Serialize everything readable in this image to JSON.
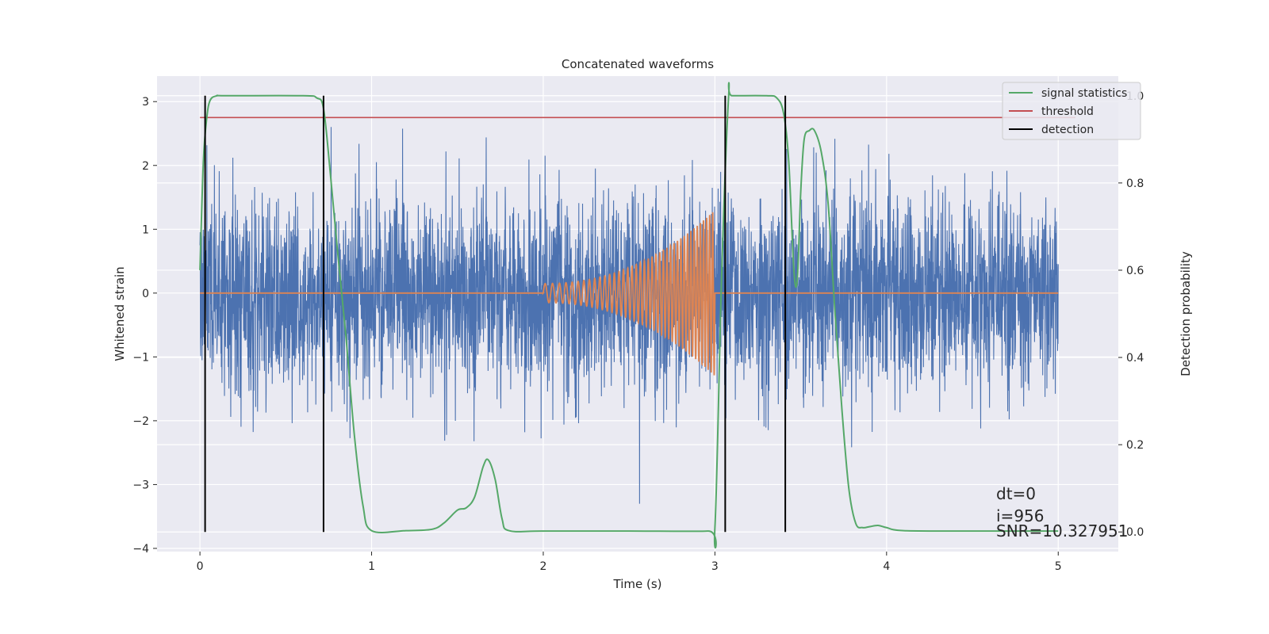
{
  "chart_data": {
    "type": "line",
    "title": "Concatenated waveforms",
    "xlabel": "Time (s)",
    "ylabel": "Whitened strain",
    "ylabel_right": "Detection probability",
    "xlim": [
      -0.25,
      5.35
    ],
    "ylim": [
      -4.05,
      3.4
    ],
    "ylim_right": [
      -0.045,
      1.045
    ],
    "x_ticks": [
      0,
      1,
      2,
      3,
      4,
      5
    ],
    "y_ticks": [
      -4,
      -3,
      -2,
      -1,
      0,
      1,
      2,
      3
    ],
    "y_ticks_right": [
      0.0,
      0.2,
      0.4,
      0.6,
      0.8,
      1.0
    ],
    "grid": true,
    "legend_position": "top-right",
    "colors": {
      "background": "#eaeaf2",
      "grid": "#ffffff",
      "strain": "#4c72b0",
      "template": "#dd8452",
      "signal_statistics": "#55a868",
      "threshold": "#c44e52",
      "detection": "#000000"
    },
    "legend": [
      {
        "name": "signal statistics",
        "color": "#55a868"
      },
      {
        "name": "threshold",
        "color": "#c44e52"
      },
      {
        "name": "detection",
        "color": "#000000"
      }
    ],
    "series": [
      {
        "name": "whitened strain",
        "axis": "left",
        "note_envelope": {
          "x_range": [
            0,
            5
          ],
          "typical_amplitude": 1.3,
          "max_abs": 3.3
        }
      },
      {
        "name": "chirp waveform",
        "axis": "left",
        "x_range": [
          2.0,
          3.0
        ],
        "amplitude_start": 0.15,
        "amplitude_end": 1.3,
        "cycles": 40
      },
      {
        "name": "signal statistics",
        "axis": "right",
        "x": [
          0.0,
          0.02,
          0.04,
          0.06,
          0.1,
          0.15,
          0.6,
          0.68,
          0.72,
          0.76,
          0.8,
          0.85,
          0.9,
          0.95,
          1.0,
          1.2,
          1.35,
          1.42,
          1.5,
          1.55,
          1.6,
          1.65,
          1.68,
          1.72,
          1.76,
          1.8,
          2.0,
          2.5,
          2.96,
          3.0,
          3.04,
          3.08,
          3.1,
          3.3,
          3.36,
          3.4,
          3.43,
          3.46,
          3.48,
          3.5,
          3.52,
          3.55,
          3.58,
          3.62,
          3.66,
          3.7,
          3.74,
          3.78,
          3.82,
          3.86,
          3.9,
          3.95,
          4.0,
          4.1,
          4.5,
          5.0
        ],
        "y": [
          0.6,
          0.85,
          0.95,
          0.99,
          1.0,
          1.0,
          1.0,
          0.995,
          0.97,
          0.82,
          0.65,
          0.45,
          0.22,
          0.06,
          0.003,
          0.003,
          0.006,
          0.02,
          0.05,
          0.055,
          0.08,
          0.15,
          0.165,
          0.12,
          0.03,
          0.003,
          0.002,
          0.002,
          0.002,
          0.01,
          0.6,
          1.0,
          1.0,
          1.0,
          0.995,
          0.96,
          0.85,
          0.6,
          0.58,
          0.78,
          0.9,
          0.92,
          0.92,
          0.87,
          0.75,
          0.5,
          0.28,
          0.1,
          0.02,
          0.01,
          0.012,
          0.015,
          0.01,
          0.003,
          0.002,
          0.002
        ]
      },
      {
        "name": "threshold",
        "axis": "right",
        "x": [
          0.0,
          5.1
        ],
        "y": [
          0.95,
          0.95
        ]
      }
    ],
    "detections_x": [
      0.03,
      0.72,
      3.06,
      3.41
    ],
    "annotations": [
      "dt=0",
      "i=956",
      "SNR=10.327951"
    ]
  }
}
